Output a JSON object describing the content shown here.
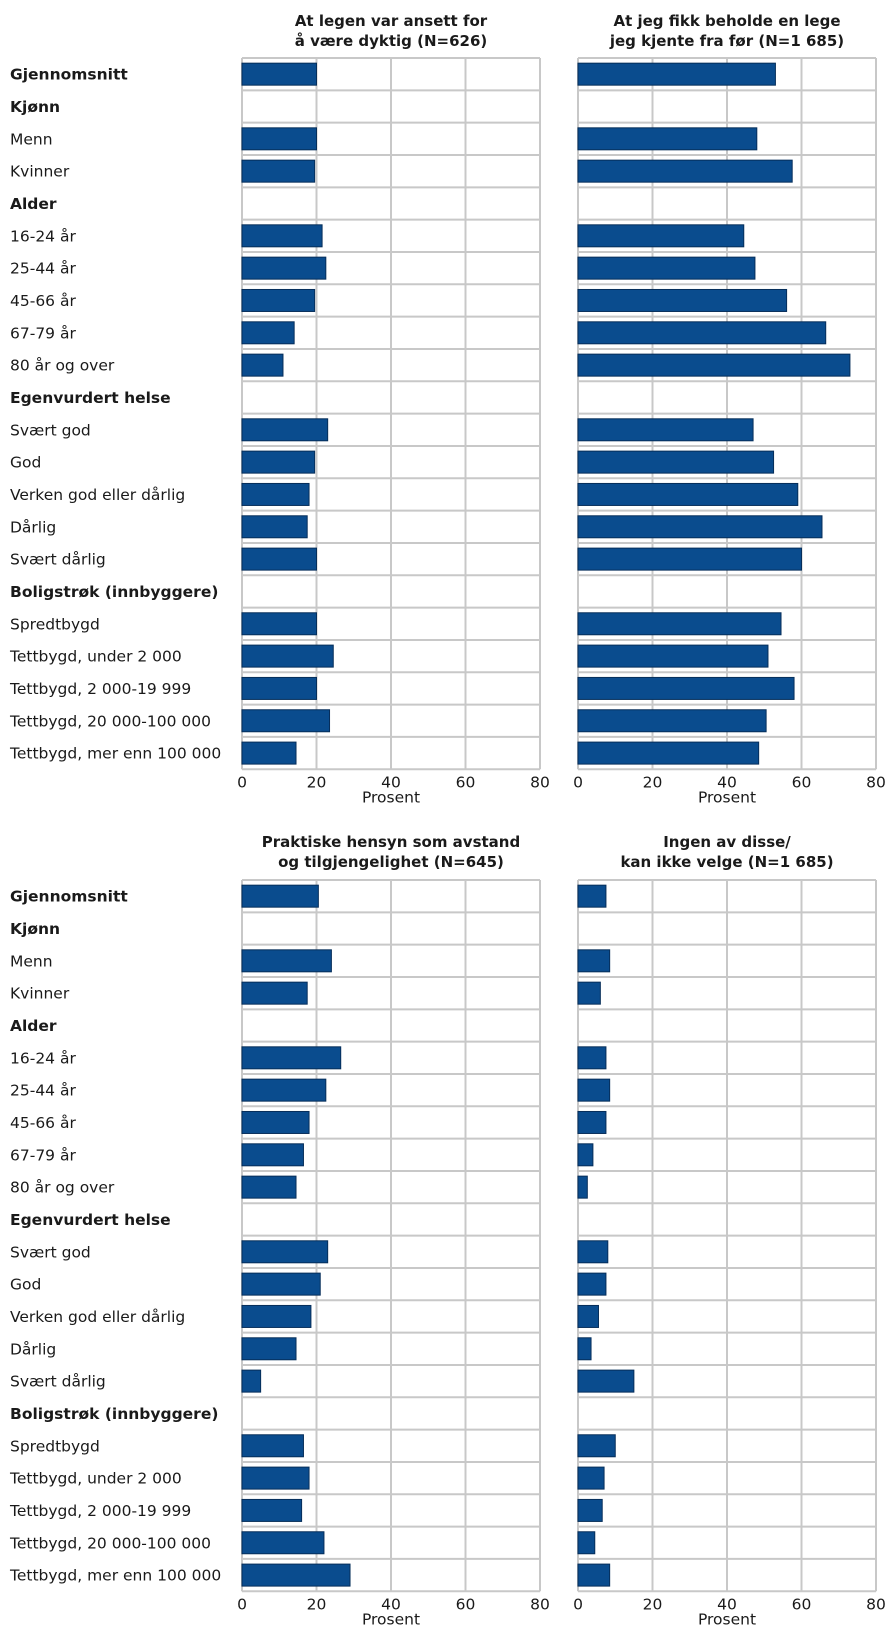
{
  "chart_data": {
    "type": "bar",
    "orientation": "horizontal",
    "xlabel": "Prosent",
    "xlim": [
      0,
      80
    ],
    "xticks": [
      "0",
      "20",
      "40",
      "60",
      "80"
    ],
    "grid": true,
    "categories": [
      {
        "label": "Gjennomsnitt",
        "header": true,
        "has_bar": true
      },
      {
        "label": "Kjønn",
        "header": true,
        "has_bar": false
      },
      {
        "label": "Menn",
        "header": false,
        "has_bar": true
      },
      {
        "label": "Kvinner",
        "header": false,
        "has_bar": true
      },
      {
        "label": "Alder",
        "header": true,
        "has_bar": false
      },
      {
        "label": "16-24 år",
        "header": false,
        "has_bar": true
      },
      {
        "label": "25-44 år",
        "header": false,
        "has_bar": true
      },
      {
        "label": "45-66 år",
        "header": false,
        "has_bar": true
      },
      {
        "label": "67-79 år",
        "header": false,
        "has_bar": true
      },
      {
        "label": "80 år og over",
        "header": false,
        "has_bar": true
      },
      {
        "label": "Egenvurdert helse",
        "header": true,
        "has_bar": false
      },
      {
        "label": "Svært god",
        "header": false,
        "has_bar": true
      },
      {
        "label": "God",
        "header": false,
        "has_bar": true
      },
      {
        "label": "Verken god eller dårlig",
        "header": false,
        "has_bar": true
      },
      {
        "label": "Dårlig",
        "header": false,
        "has_bar": true
      },
      {
        "label": "Svært dårlig",
        "header": false,
        "has_bar": true
      },
      {
        "label": "Boligstrøk (innbyggere)",
        "header": true,
        "has_bar": false
      },
      {
        "label": "Spredtbygd",
        "header": false,
        "has_bar": true
      },
      {
        "label": "Tettbygd, under 2 000",
        "header": false,
        "has_bar": true
      },
      {
        "label": "Tettbygd, 2 000-19 999",
        "header": false,
        "has_bar": true
      },
      {
        "label": "Tettbygd, 20 000-100 000",
        "header": false,
        "has_bar": true
      },
      {
        "label": "Tettbygd, mer enn 100 000",
        "header": false,
        "has_bar": true
      }
    ],
    "panels": [
      {
        "title": [
          "At legen var ansett for",
          "å være dyktig (N=626)"
        ],
        "values": [
          20,
          null,
          20,
          19.5,
          null,
          21.5,
          22.5,
          19.5,
          14,
          11,
          null,
          23,
          19.5,
          18,
          17.5,
          20,
          null,
          20,
          24.5,
          20,
          23.5,
          14.5
        ]
      },
      {
        "title": [
          "At jeg fikk beholde en lege",
          "jeg kjente fra før (N=1 685)"
        ],
        "values": [
          53,
          null,
          48,
          57.5,
          null,
          44.5,
          47.5,
          56,
          66.5,
          73,
          null,
          47,
          52.5,
          59,
          65.5,
          60,
          null,
          54.5,
          51,
          58,
          50.5,
          48.5
        ]
      },
      {
        "title": [
          "Praktiske hensyn som avstand",
          "og tilgjengelighet (N=645)"
        ],
        "values": [
          20.5,
          null,
          24,
          17.5,
          null,
          26.5,
          22.5,
          18,
          16.5,
          14.5,
          null,
          23,
          21,
          18.5,
          14.5,
          5,
          null,
          16.5,
          18,
          16,
          22,
          29
        ]
      },
      {
        "title": [
          "Ingen av disse/",
          "kan ikke velge (N=1 685)"
        ],
        "values": [
          7.5,
          null,
          8.5,
          6,
          null,
          7.5,
          8.5,
          7.5,
          4,
          2.5,
          null,
          8,
          7.5,
          5.5,
          3.5,
          15,
          null,
          10,
          7,
          6.5,
          4.5,
          8.5
        ]
      }
    ]
  }
}
